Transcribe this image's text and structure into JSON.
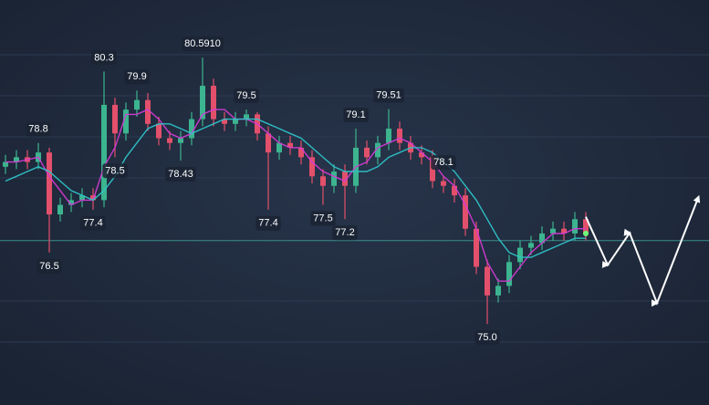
{
  "chart_data": {
    "type": "candlestick",
    "open": [
      78.3,
      78.4,
      78.5,
      78.4,
      78.6,
      77.3,
      77.5,
      77.6,
      77.7,
      77.6,
      79.6,
      79.0,
      79.5,
      79.7,
      79.2,
      78.9,
      78.8,
      78.9,
      79.3,
      80.0,
      79.3,
      79.2,
      79.3,
      79.4,
      79.0,
      78.6,
      78.8,
      78.7,
      78.5,
      78.1,
      77.9,
      78.2,
      77.9,
      78.7,
      78.5,
      78.8,
      79.1,
      78.8,
      78.6,
      78.5,
      78.0,
      77.9,
      77.7,
      77.0,
      76.2,
      75.6,
      75.8,
      76.3,
      76.6,
      76.7,
      76.9,
      77.0,
      76.9,
      77.2
    ],
    "close": [
      78.4,
      78.5,
      78.4,
      78.6,
      77.3,
      77.5,
      77.6,
      77.7,
      77.6,
      79.6,
      79.0,
      79.5,
      79.7,
      79.2,
      78.9,
      78.8,
      78.9,
      79.3,
      80.0,
      79.3,
      79.2,
      79.3,
      79.4,
      79.0,
      78.6,
      78.8,
      78.7,
      78.5,
      78.1,
      77.9,
      78.2,
      77.9,
      78.7,
      78.5,
      78.8,
      79.1,
      78.8,
      78.6,
      78.5,
      78.0,
      77.9,
      77.7,
      77.0,
      76.2,
      75.6,
      75.8,
      76.3,
      76.6,
      76.7,
      76.9,
      77.0,
      76.9,
      77.2,
      76.9
    ],
    "high": [
      78.55,
      78.65,
      78.65,
      78.8,
      78.7,
      77.65,
      77.75,
      77.85,
      77.85,
      80.3,
      79.75,
      79.65,
      79.9,
      79.85,
      79.35,
      79.05,
      79.05,
      79.45,
      80.591,
      80.15,
      79.45,
      79.45,
      79.5,
      79.45,
      79.15,
      78.95,
      78.95,
      78.85,
      78.65,
      78.25,
      78.35,
      78.35,
      79.1,
      78.85,
      78.95,
      79.51,
      79.25,
      78.95,
      78.75,
      78.65,
      78.1,
      78.05,
      77.85,
      77.15,
      76.35,
      75.95,
      76.45,
      76.75,
      76.85,
      77.05,
      77.15,
      77.15,
      77.35,
      77.35
    ],
    "low": [
      78.15,
      78.25,
      78.25,
      78.25,
      76.5,
      77.15,
      77.35,
      77.45,
      77.4,
      77.45,
      78.5,
      78.85,
      79.35,
      79.05,
      78.75,
      78.65,
      78.43,
      78.75,
      79.15,
      79.15,
      79.05,
      79.05,
      79.15,
      78.85,
      77.4,
      78.45,
      78.55,
      78.35,
      77.95,
      77.5,
      77.75,
      77.2,
      77.75,
      78.35,
      78.35,
      78.65,
      78.65,
      78.45,
      78.35,
      77.85,
      77.75,
      77.55,
      76.85,
      76.05,
      75.0,
      75.45,
      75.65,
      76.15,
      76.45,
      76.55,
      76.75,
      76.75,
      76.75,
      76.75
    ],
    "high_labels": [
      null,
      null,
      null,
      "78.8",
      null,
      null,
      null,
      null,
      null,
      "80.3",
      null,
      null,
      "79.9",
      null,
      null,
      null,
      null,
      null,
      "80.5910",
      null,
      null,
      null,
      "79.5",
      null,
      null,
      null,
      null,
      null,
      null,
      null,
      null,
      null,
      "79.1",
      null,
      null,
      "79.51",
      null,
      null,
      null,
      null,
      "78.1",
      null,
      null,
      null,
      null,
      null,
      null,
      null,
      null,
      null,
      null,
      null,
      null,
      null
    ],
    "low_labels": [
      null,
      null,
      null,
      null,
      "76.5",
      null,
      null,
      null,
      "77.4",
      null,
      "78.5",
      null,
      null,
      null,
      null,
      null,
      "78.43",
      null,
      null,
      null,
      null,
      null,
      null,
      null,
      "77.4",
      null,
      null,
      null,
      null,
      "77.5",
      null,
      "77.2",
      null,
      null,
      null,
      null,
      null,
      null,
      null,
      null,
      null,
      null,
      null,
      null,
      "75.0",
      null,
      null,
      null,
      null,
      null,
      null,
      null,
      null,
      null
    ],
    "up_color": "#3cb48f",
    "down_color": "#e2506b",
    "series": [
      {
        "color": "#d43bd4",
        "values": [
          78.4,
          78.4,
          78.45,
          78.5,
          78.1,
          77.8,
          77.5,
          77.6,
          77.6,
          78.3,
          78.7,
          79.4,
          79.4,
          79.5,
          79.3,
          79.0,
          78.9,
          79.0,
          79.4,
          79.5,
          79.5,
          79.3,
          79.3,
          79.2,
          79.0,
          78.8,
          78.7,
          78.7,
          78.4,
          78.2,
          78.1,
          78.0,
          78.3,
          78.4,
          78.7,
          78.8,
          78.9,
          78.8,
          78.6,
          78.4,
          78.1,
          77.9,
          77.5,
          77.0,
          76.3,
          75.9,
          75.9,
          76.2,
          76.5,
          76.7,
          76.9,
          76.9,
          77.0,
          77.0
        ]
      },
      {
        "color": "#2ec4c9",
        "values": [
          78.0,
          78.1,
          78.2,
          78.3,
          78.2,
          78.0,
          77.8,
          77.7,
          77.6,
          77.8,
          78.1,
          78.5,
          78.8,
          79.1,
          79.2,
          79.2,
          79.1,
          79.0,
          79.1,
          79.2,
          79.3,
          79.3,
          79.3,
          79.3,
          79.2,
          79.1,
          79.0,
          78.9,
          78.7,
          78.5,
          78.3,
          78.2,
          78.2,
          78.2,
          78.3,
          78.5,
          78.6,
          78.7,
          78.7,
          78.6,
          78.4,
          78.2,
          77.9,
          77.6,
          77.2,
          76.8,
          76.5,
          76.4,
          76.4,
          76.5,
          76.6,
          76.7,
          76.8,
          76.8
        ]
      }
    ],
    "projection": {
      "color": "#ffffff",
      "x": [
        53,
        55,
        57,
        59.5,
        63.3
      ],
      "values": [
        77.25,
        76.24,
        76.91,
        75.44,
        77.67
      ]
    },
    "price_line": 76.75,
    "xlim": [
      -0.5,
      64.25
    ],
    "ylim": [
      73.3,
      81.8
    ]
  }
}
